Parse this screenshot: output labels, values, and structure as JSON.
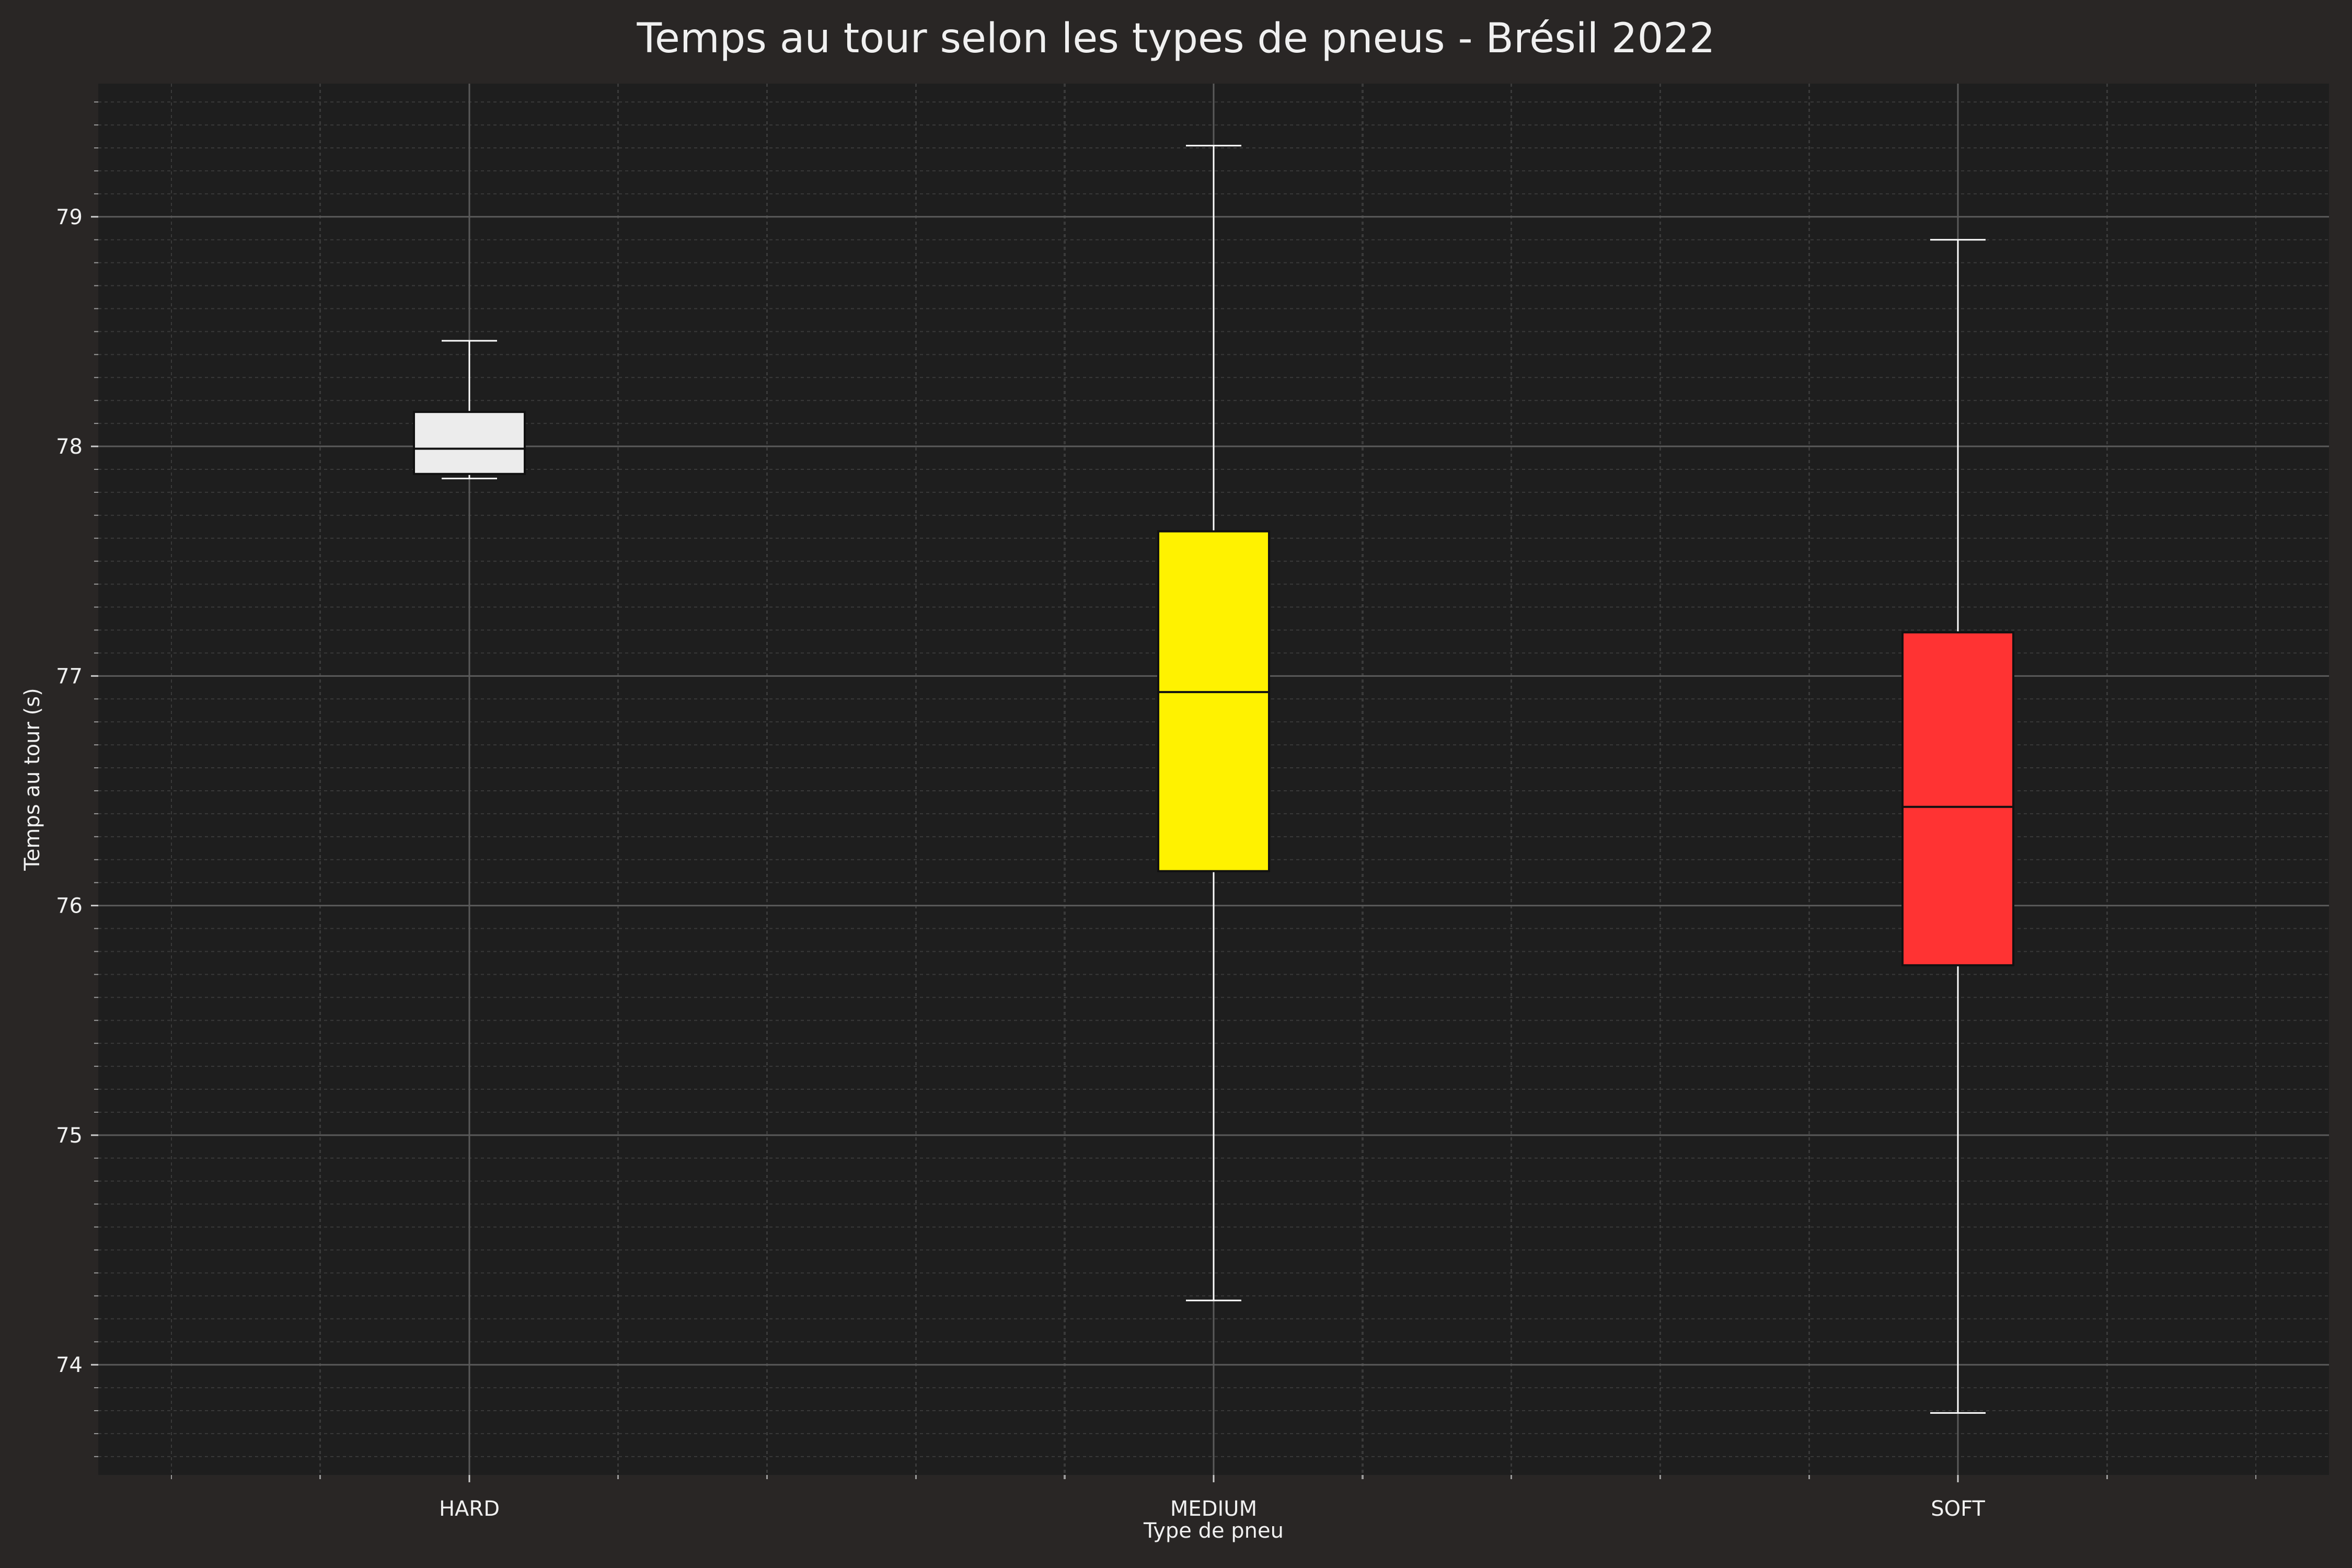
{
  "chart_data": {
    "type": "box",
    "title": "Temps au tour selon les types de pneus - Brésil 2022",
    "xlabel": "Type de pneu",
    "ylabel": "Temps au tour (s)",
    "ylim": [
      73.52,
      79.58
    ],
    "yticks": [
      "74",
      "75",
      "76",
      "77",
      "78",
      "79"
    ],
    "grid": true,
    "categories": [
      "HARD",
      "MEDIUM",
      "SOFT"
    ],
    "boxes": [
      {
        "category": "HARD",
        "whisker_low": 77.86,
        "q1": 77.88,
        "median": 77.99,
        "q3": 78.15,
        "whisker_high": 78.46,
        "color": "#ececec"
      },
      {
        "category": "MEDIUM",
        "whisker_low": 74.28,
        "q1": 76.15,
        "median": 76.93,
        "q3": 77.63,
        "whisker_high": 79.31,
        "color": "#fff200"
      },
      {
        "category": "SOFT",
        "whisker_low": 73.79,
        "q1": 75.74,
        "median": 76.43,
        "q3": 77.19,
        "whisker_high": 78.9,
        "color": "#ff3333"
      }
    ],
    "colors": {
      "figure_bg": "#292625",
      "axes_bg": "#1e1e1e",
      "text": "#f0f0f0",
      "whisker": "#ffffff"
    }
  }
}
